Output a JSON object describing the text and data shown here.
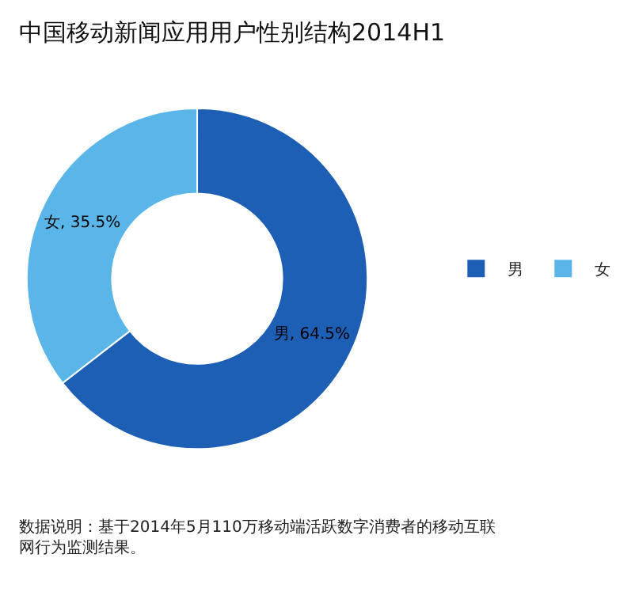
{
  "chart_data": {
    "type": "donut",
    "title": "中国移动新闻应用用户性别结构2014H1",
    "categories": [
      "男",
      "女"
    ],
    "values": [
      64.5,
      35.5
    ],
    "colors": [
      "#1c5fb5",
      "#5ab6e8"
    ],
    "value_labels": [
      "男, 64.5%",
      "女, 35.5%"
    ],
    "legend": "right",
    "annotations": [
      "数据说明：基于2014年5月110万移动端活跃数字消费者的移动互联网行为监测结果。"
    ]
  }
}
